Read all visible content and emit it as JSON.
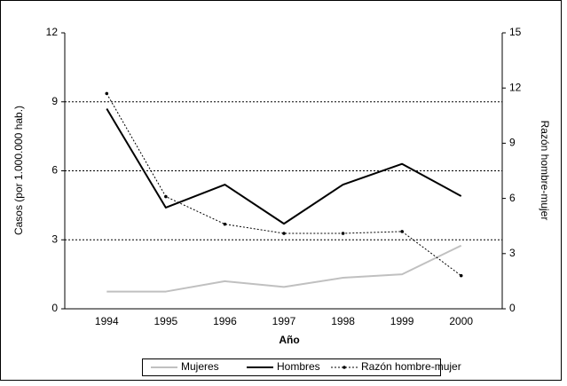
{
  "chart_data": {
    "type": "line",
    "x_label": "Año",
    "y_label": "Casos (por 1.000.000 hab.)",
    "y2_label": "Razón hombre-mujer",
    "categories": [
      "1994",
      "1995",
      "1996",
      "1997",
      "1998",
      "1999",
      "2000"
    ],
    "series": [
      {
        "name": "Mujeres",
        "color": "#c0c0c0",
        "values": [
          0.75,
          0.75,
          1.2,
          0.95,
          1.35,
          1.5,
          2.75
        ]
      },
      {
        "name": "Hombres",
        "color": "#000000",
        "values": [
          8.7,
          4.4,
          5.4,
          3.7,
          5.4,
          6.3,
          4.9
        ]
      },
      {
        "name": "Razón hombre-mujer",
        "color": "#000000",
        "axis": "y2",
        "dashed": true,
        "markers": true,
        "values": [
          11.7,
          6.1,
          4.6,
          4.1,
          4.1,
          4.2,
          1.8
        ]
      }
    ],
    "ylim": [
      0,
      12
    ],
    "yticks": [
      0,
      3,
      6,
      9,
      12
    ],
    "y2lim": [
      0,
      15
    ],
    "y2ticks": [
      0,
      3,
      6,
      9,
      12,
      15
    ],
    "grid": true,
    "legend": "bottom"
  }
}
